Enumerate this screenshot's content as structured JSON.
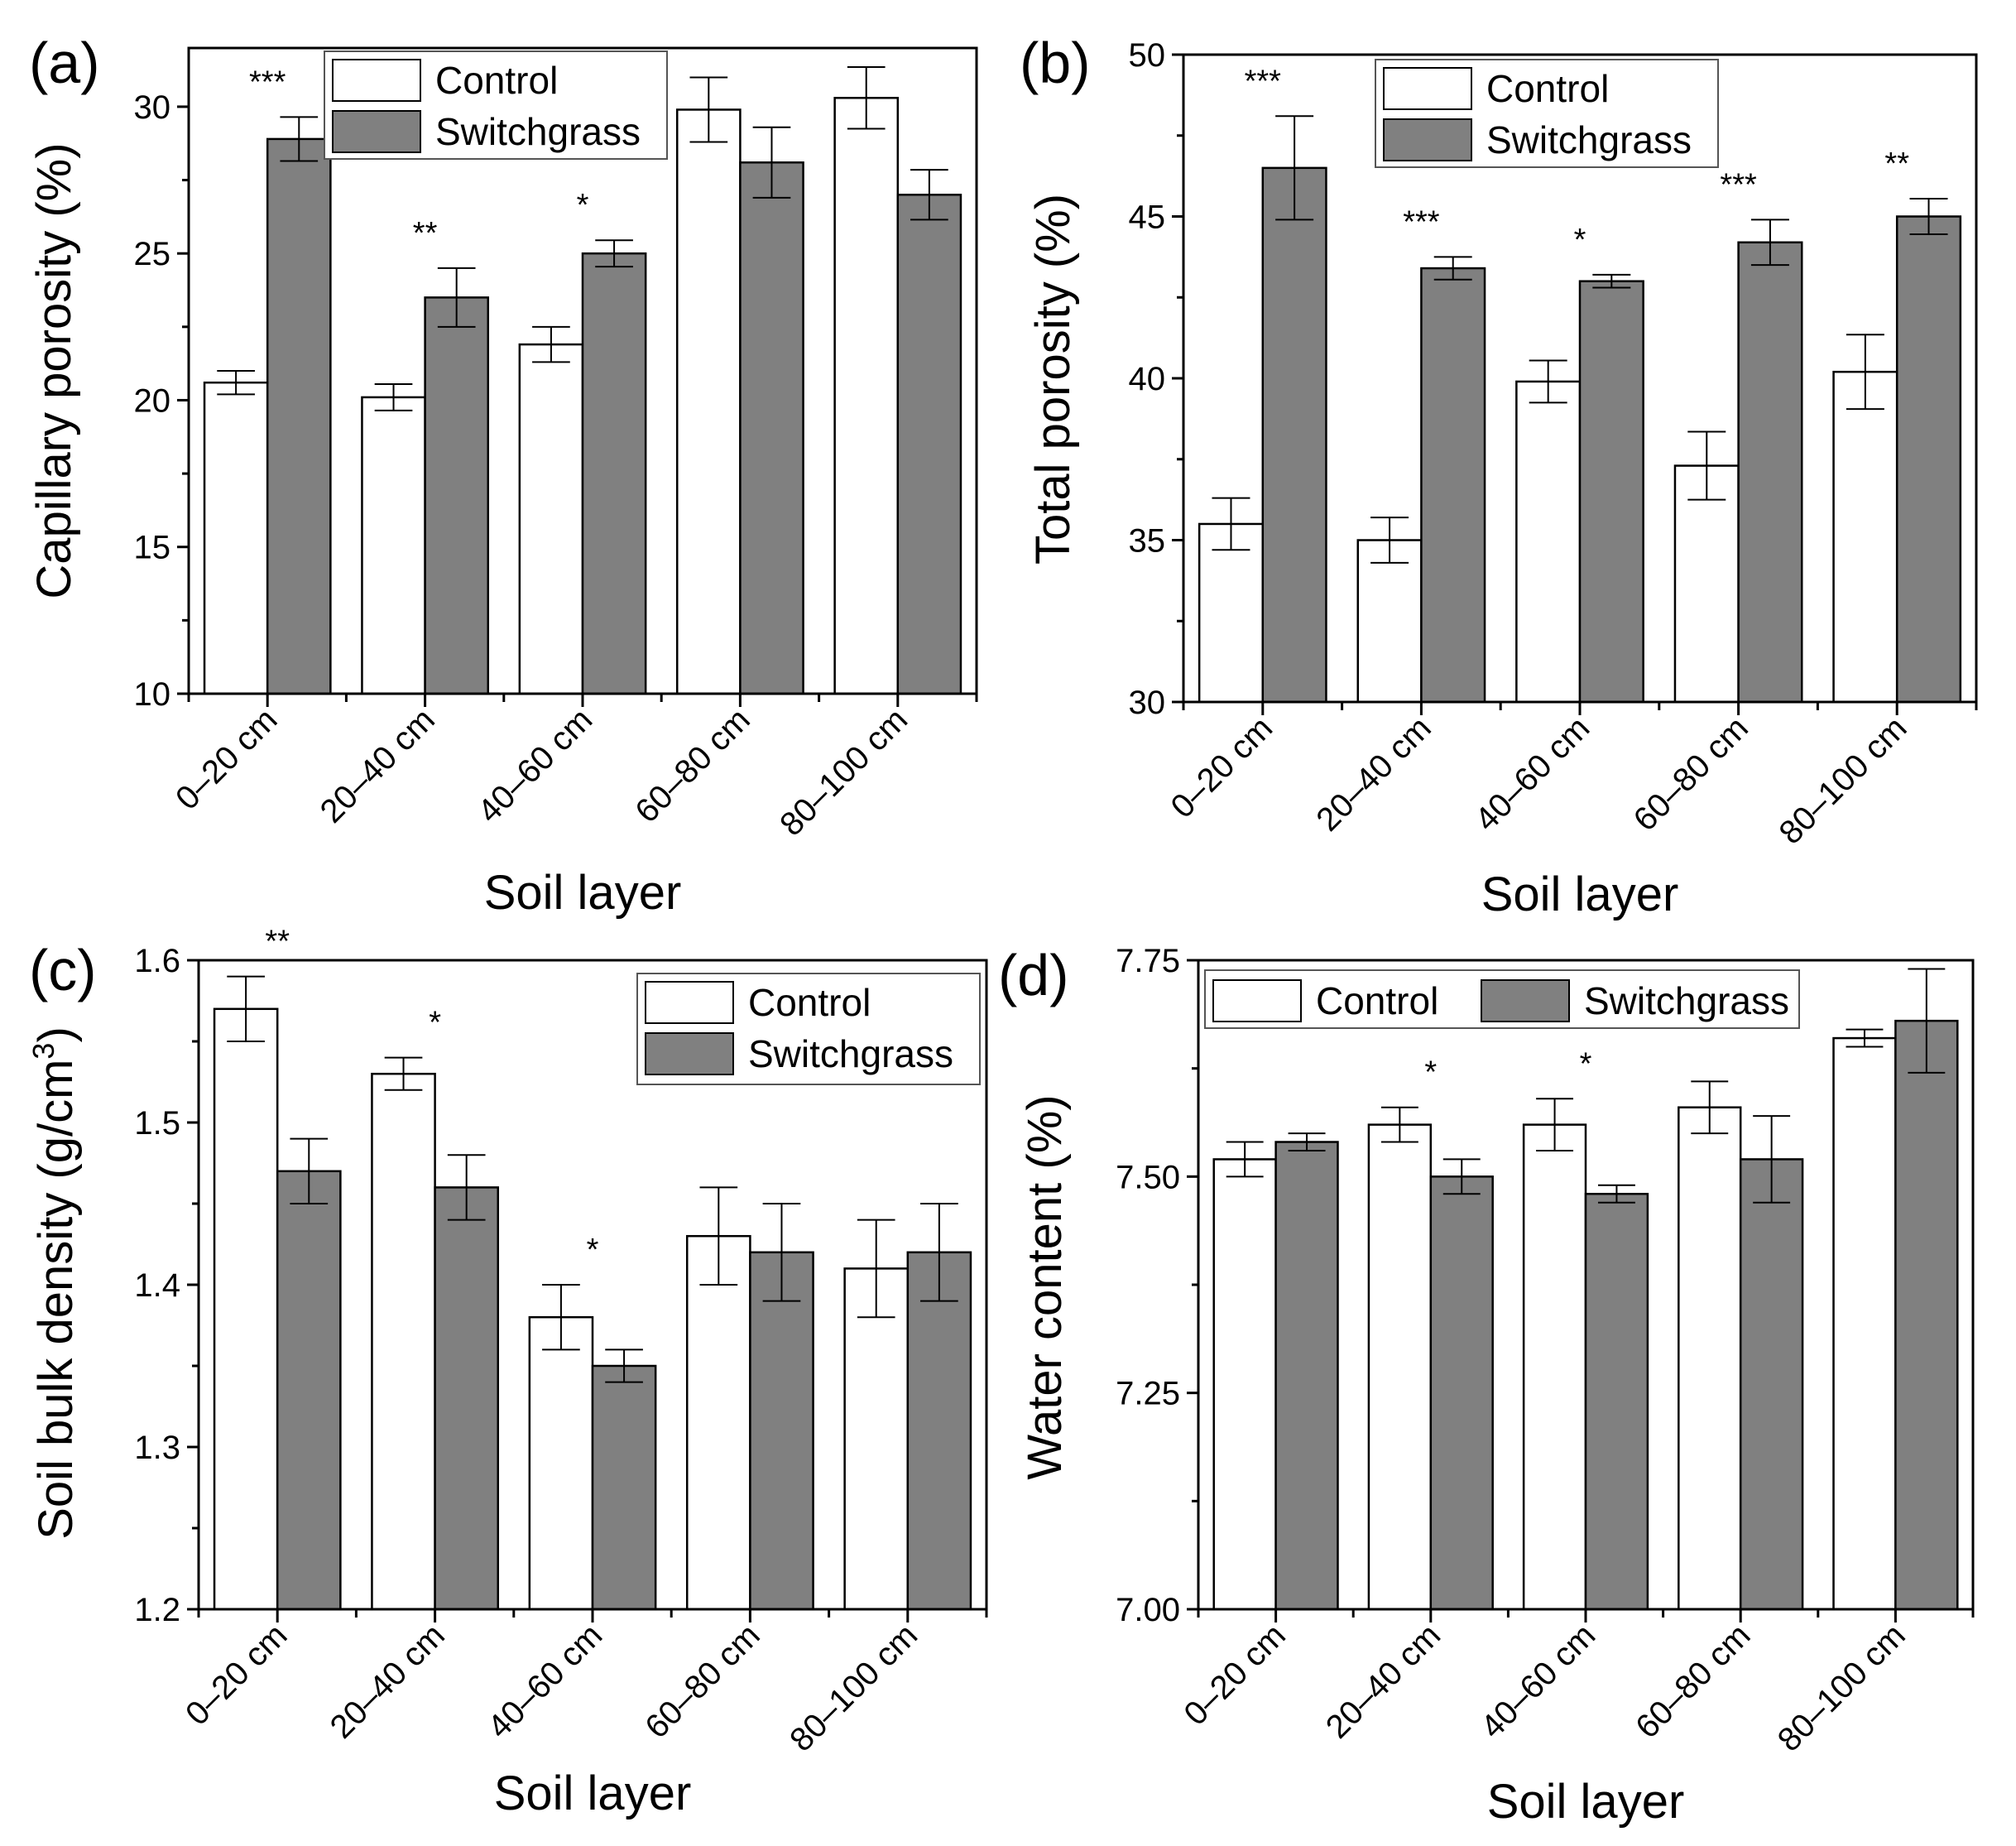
{
  "colors": {
    "control": "#ffffff",
    "switchgrass": "#808080",
    "edge": "#000000"
  },
  "chart_data": [
    {
      "panel": "(a)",
      "type": "bar",
      "xlabel": "Soil layer",
      "ylabel": "Capillary porosity (%)",
      "categories": [
        "0–20 cm",
        "20–40 cm",
        "40–60 cm",
        "60–80 cm",
        "80–100 cm"
      ],
      "ylim": [
        10,
        32
      ],
      "yticks": [
        10,
        15,
        20,
        25,
        30
      ],
      "tick_decimals": 0,
      "legend": "top-center",
      "series": [
        {
          "name": "Control",
          "values": [
            20.6,
            20.1,
            21.9,
            29.9,
            30.3
          ],
          "errors": [
            0.4,
            0.45,
            0.6,
            1.1,
            1.05
          ]
        },
        {
          "name": "Switchgrass",
          "values": [
            28.9,
            23.5,
            25.0,
            28.1,
            27.0
          ],
          "errors": [
            0.75,
            1.0,
            0.45,
            1.2,
            0.85
          ]
        }
      ],
      "significance": [
        "***",
        "**",
        "*",
        "",
        ""
      ]
    },
    {
      "panel": "(b)",
      "type": "bar",
      "xlabel": "Soil layer",
      "ylabel": "Total porosity (%)",
      "categories": [
        "0–20 cm",
        "20–40 cm",
        "40–60 cm",
        "60–80 cm",
        "80–100 cm"
      ],
      "ylim": [
        30,
        50
      ],
      "yticks": [
        30,
        35,
        40,
        45,
        50
      ],
      "tick_decimals": 0,
      "legend": "top-center",
      "series": [
        {
          "name": "Control",
          "values": [
            35.5,
            35.0,
            39.9,
            37.3,
            40.2
          ],
          "errors": [
            0.8,
            0.7,
            0.65,
            1.05,
            1.15
          ]
        },
        {
          "name": "Switchgrass",
          "values": [
            46.5,
            43.4,
            43.0,
            44.2,
            45.0
          ],
          "errors": [
            1.6,
            0.35,
            0.2,
            0.7,
            0.55
          ]
        }
      ],
      "significance": [
        "***",
        "***",
        "*",
        "***",
        "**"
      ]
    },
    {
      "panel": "(c)",
      "type": "bar",
      "xlabel": "Soil layer",
      "ylabel": "Soil bulk density (g/cm",
      "ylabel_sup": "3",
      "ylabel_end": ")",
      "categories": [
        "0–20 cm",
        "20–40 cm",
        "40–60 cm",
        "60–80 cm",
        "80–100 cm"
      ],
      "ylim": [
        1.2,
        1.6
      ],
      "yticks": [
        1.2,
        1.3,
        1.4,
        1.5,
        1.6
      ],
      "tick_decimals": 1,
      "legend": "top-right",
      "series": [
        {
          "name": "Control",
          "values": [
            1.57,
            1.53,
            1.38,
            1.43,
            1.41
          ],
          "errors": [
            0.02,
            0.01,
            0.02,
            0.03,
            0.03
          ]
        },
        {
          "name": "Switchgrass",
          "values": [
            1.47,
            1.46,
            1.35,
            1.42,
            1.42
          ],
          "errors": [
            0.02,
            0.02,
            0.01,
            0.03,
            0.03
          ]
        }
      ],
      "significance": [
        "**",
        "*",
        "*",
        "",
        ""
      ]
    },
    {
      "panel": "(d)",
      "type": "bar",
      "xlabel": "Soil layer",
      "ylabel": "Water content (%)",
      "categories": [
        "0–20 cm",
        "20–40 cm",
        "40–60 cm",
        "60–80 cm",
        "80–100 cm"
      ],
      "ylim": [
        7.0,
        7.75
      ],
      "yticks": [
        7.0,
        7.25,
        7.5,
        7.75
      ],
      "tick_decimals": 2,
      "legend": "top-left",
      "series": [
        {
          "name": "Control",
          "values": [
            7.52,
            7.56,
            7.56,
            7.58,
            7.66
          ],
          "errors": [
            0.02,
            0.02,
            0.03,
            0.03,
            0.01
          ]
        },
        {
          "name": "Switchgrass",
          "values": [
            7.54,
            7.5,
            7.48,
            7.52,
            7.68
          ],
          "errors": [
            0.01,
            0.02,
            0.01,
            0.05,
            0.06
          ]
        }
      ],
      "significance": [
        "",
        "*",
        "*",
        "",
        ""
      ]
    }
  ]
}
